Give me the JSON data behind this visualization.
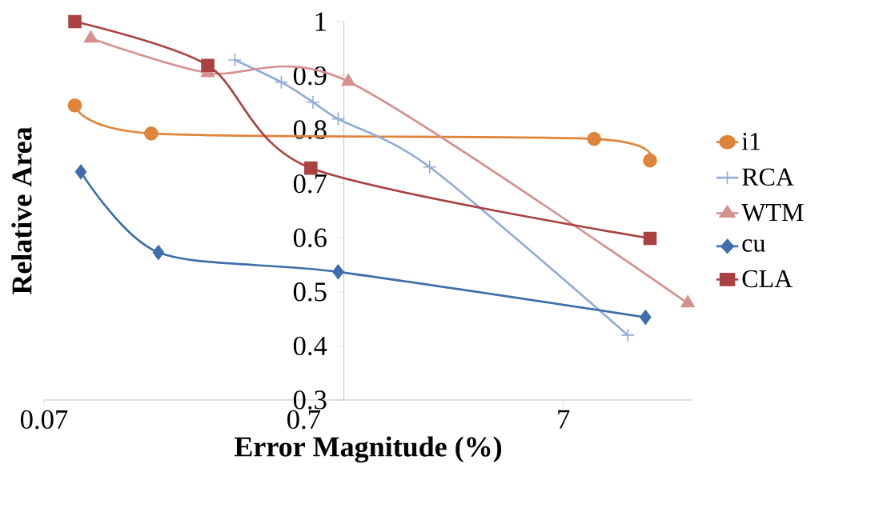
{
  "chart_data": {
    "type": "line",
    "xlabel": "Error Magnitude (%)",
    "ylabel": "Relative Area",
    "log": "x",
    "xlim": [
      0.07,
      22
    ],
    "xticks": [
      0.07,
      0.7,
      7
    ],
    "ylim": [
      0.3,
      1
    ],
    "yticks": [
      0.3,
      0.4,
      0.5,
      0.6,
      0.7,
      0.8,
      0.9,
      1
    ],
    "grid": false,
    "legend": "right",
    "line_style": "solid",
    "series": [
      {
        "name": "i1",
        "color": "#e0843a",
        "marker": "circle",
        "x": [
          0.092,
          0.181,
          9.2,
          15.1
        ],
        "values": [
          0.845,
          0.793,
          0.783,
          0.743
        ]
      },
      {
        "name": "RCA",
        "color": "#93abd6",
        "marker": "cross",
        "x": [
          0.38,
          0.574,
          0.76,
          0.95,
          2.14,
          12.4
        ],
        "values": [
          0.929,
          0.888,
          0.851,
          0.82,
          0.731,
          0.42
        ]
      },
      {
        "name": "WTM",
        "color": "#d6908f",
        "marker": "triangle",
        "x": [
          0.106,
          0.299,
          1.04,
          21.1
        ],
        "values": [
          0.969,
          0.905,
          0.889,
          0.479
        ]
      },
      {
        "name": "cu",
        "color": "#3e6eab",
        "marker": "diamond",
        "x": [
          0.097,
          0.193,
          0.95,
          14.5
        ],
        "values": [
          0.722,
          0.573,
          0.537,
          0.453
        ]
      },
      {
        "name": "CLA",
        "color": "#ab4242",
        "marker": "square",
        "x": [
          0.092,
          0.299,
          0.746,
          15.1
        ],
        "values": [
          1.0,
          0.919,
          0.729,
          0.599
        ]
      }
    ]
  }
}
